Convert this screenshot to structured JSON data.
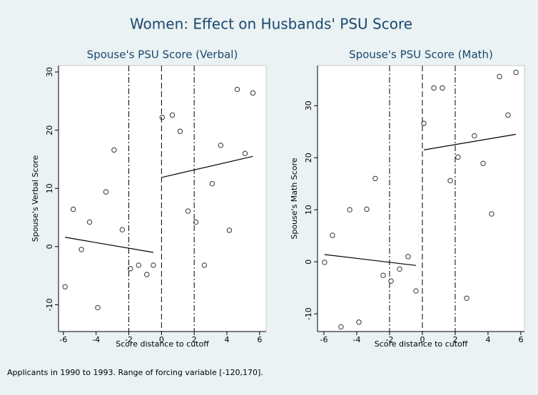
{
  "title": "Women: Effect on Husbands' PSU Score",
  "note": "Applicants in 1990 to 1993. Range of forcing variable [-120,170].",
  "chart_data": [
    {
      "type": "scatter",
      "title": "Spouse's PSU Score (Verbal)",
      "x_label": "Score distance to cutoff",
      "y_label": "Spouse's Verbal Score",
      "x": [
        -5.9,
        -5.4,
        -4.9,
        -4.4,
        -3.9,
        -3.4,
        -2.9,
        -2.4,
        -1.9,
        -1.4,
        -0.9,
        -0.5,
        0.04,
        0.66,
        1.14,
        1.62,
        2.1,
        2.62,
        3.1,
        3.62,
        4.15,
        4.63,
        5.11,
        5.59
      ],
      "values": [
        -6.9,
        6.4,
        -0.5,
        4.2,
        -10.5,
        9.4,
        16.6,
        2.9,
        -3.8,
        -3.2,
        -4.8,
        -3.2,
        22.2,
        22.6,
        19.8,
        6.1,
        4.2,
        -3.2,
        10.8,
        17.4,
        2.8,
        27.0,
        16.0,
        26.4
      ],
      "color": "#333333",
      "lines": [
        {
          "x": [
            -5.9,
            -0.5
          ],
          "values": [
            1.6,
            -1.0
          ],
          "color": "#000000"
        },
        {
          "x": [
            0.04,
            5.59
          ],
          "values": [
            11.9,
            15.5
          ],
          "color": "#000000"
        }
      ],
      "reference_lines": [
        {
          "value": -2,
          "style": "dashdot"
        },
        {
          "value": 0,
          "style": "dashed"
        },
        {
          "value": 2,
          "style": "dashdot"
        }
      ],
      "xlim": [
        -6.3,
        6.4
      ],
      "ylim": [
        -14.6,
        31.1
      ],
      "xticks": [
        -6,
        -4,
        -2,
        0,
        2,
        4,
        6
      ],
      "yticks": [
        -10,
        0,
        10,
        20,
        30
      ]
    },
    {
      "type": "scatter",
      "title": "Spouse's PSU Score (Math)",
      "x_label": "Score distance to cutoff",
      "y_label": "Spouse's Math Score",
      "x": [
        -5.96,
        -5.48,
        -4.96,
        -4.43,
        -3.87,
        -3.39,
        -2.87,
        -2.39,
        -1.91,
        -1.39,
        -0.87,
        -0.39,
        0.09,
        0.7,
        1.22,
        1.7,
        2.17,
        2.7,
        3.17,
        3.7,
        4.22,
        4.7,
        5.22,
        5.7
      ],
      "values": [
        -0.1,
        5.1,
        -12.5,
        10.0,
        -11.6,
        10.1,
        16.0,
        -2.6,
        -3.7,
        -1.4,
        1.0,
        -5.6,
        26.6,
        33.4,
        33.4,
        15.6,
        20.1,
        -7.0,
        24.2,
        18.9,
        9.2,
        35.6,
        28.2,
        36.4
      ],
      "color": "#333333",
      "lines": [
        {
          "x": [
            -5.96,
            -0.39
          ],
          "values": [
            1.4,
            -0.7
          ],
          "color": "#000000"
        },
        {
          "x": [
            0.09,
            5.7
          ],
          "values": [
            21.5,
            24.5
          ],
          "color": "#000000"
        }
      ],
      "reference_lines": [
        {
          "value": -2,
          "style": "dashdot"
        },
        {
          "value": 0,
          "style": "dashed"
        },
        {
          "value": 2,
          "style": "dashdot"
        }
      ],
      "xlim": [
        -6.39,
        6.22
      ],
      "ylim": [
        -13.4,
        37.7
      ],
      "xticks": [
        -6,
        -4,
        -2,
        0,
        2,
        4,
        6
      ],
      "yticks": [
        -10,
        0,
        10,
        20,
        30
      ]
    }
  ]
}
